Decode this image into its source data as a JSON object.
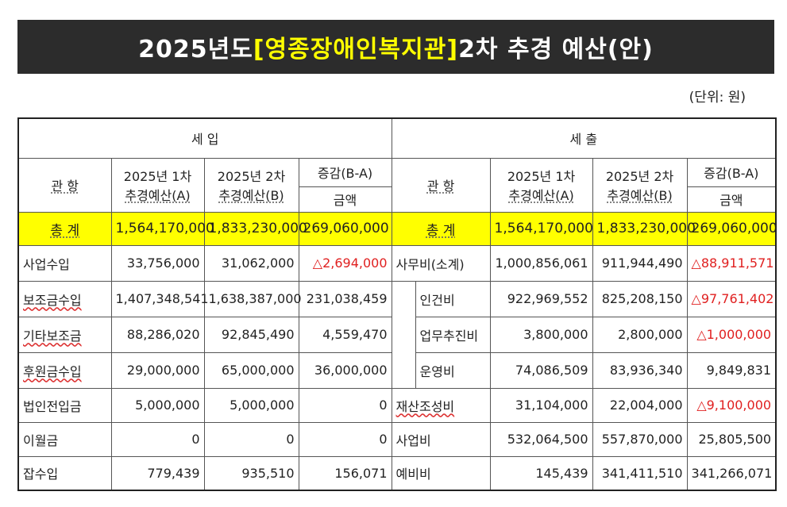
{
  "title": {
    "prefix": "2025년도 ",
    "highlight": "[영종장애인복지관]",
    "suffix": " 2차 추경 예산(안)"
  },
  "unit": "(단위: 원)",
  "headers": {
    "income": "세   입",
    "expense": "세   출",
    "category": "관   항",
    "col_a": [
      "2025년 1차",
      "추경예산(A)"
    ],
    "col_b": [
      "2025년 2차",
      "추경예산(B)"
    ],
    "col_diff": "증감(B-A)",
    "col_amount": "금액"
  },
  "total": {
    "income_label": "총   계",
    "income_a": "1,564,170,000",
    "income_b": "1,833,230,000",
    "income_diff": "269,060,000",
    "expense_label": "총   계",
    "expense_a": "1,564,170,000",
    "expense_b": "1,833,230,000",
    "expense_diff": "269,060,000"
  },
  "rows": [
    {
      "in_name": "사업수입",
      "in_a": "33,756,000",
      "in_b": "31,062,000",
      "in_diff": "△2,694,000",
      "ex_name": "사무비(소계)",
      "ex_a": "1,000,856,061",
      "ex_b": "911,944,490",
      "ex_diff": "△88,911,571"
    },
    {
      "in_name": "보조금수입",
      "in_a": "1,407,348,541",
      "in_b": "1,638,387,000",
      "in_diff": "231,038,459",
      "ex_name": "인건비",
      "ex_a": "922,969,552",
      "ex_b": "825,208,150",
      "ex_diff": "△97,761,402"
    },
    {
      "in_name": "기타보조금",
      "in_a": "88,286,020",
      "in_b": "92,845,490",
      "in_diff": "4,559,470",
      "ex_name": "업무추진비",
      "ex_a": "3,800,000",
      "ex_b": "2,800,000",
      "ex_diff": "△1,000,000"
    },
    {
      "in_name": "후원금수입",
      "in_a": "29,000,000",
      "in_b": "65,000,000",
      "in_diff": "36,000,000",
      "ex_name": "운영비",
      "ex_a": "74,086,509",
      "ex_b": "83,936,340",
      "ex_diff": "9,849,831"
    },
    {
      "in_name": "법인전입금",
      "in_a": "5,000,000",
      "in_b": "5,000,000",
      "in_diff": "0",
      "ex_name": "재산조성비",
      "ex_a": "31,104,000",
      "ex_b": "22,004,000",
      "ex_diff": "△9,100,000"
    },
    {
      "in_name": "이월금",
      "in_a": "0",
      "in_b": "0",
      "in_diff": "0",
      "ex_name": "사업비",
      "ex_a": "532,064,500",
      "ex_b": "557,870,000",
      "ex_diff": "25,805,500"
    },
    {
      "in_name": "잡수입",
      "in_a": "779,439",
      "in_b": "935,510",
      "in_diff": "156,071",
      "ex_name": "예비비",
      "ex_a": "145,439",
      "ex_b": "341,411,510",
      "ex_diff": "341,266,071"
    }
  ]
}
